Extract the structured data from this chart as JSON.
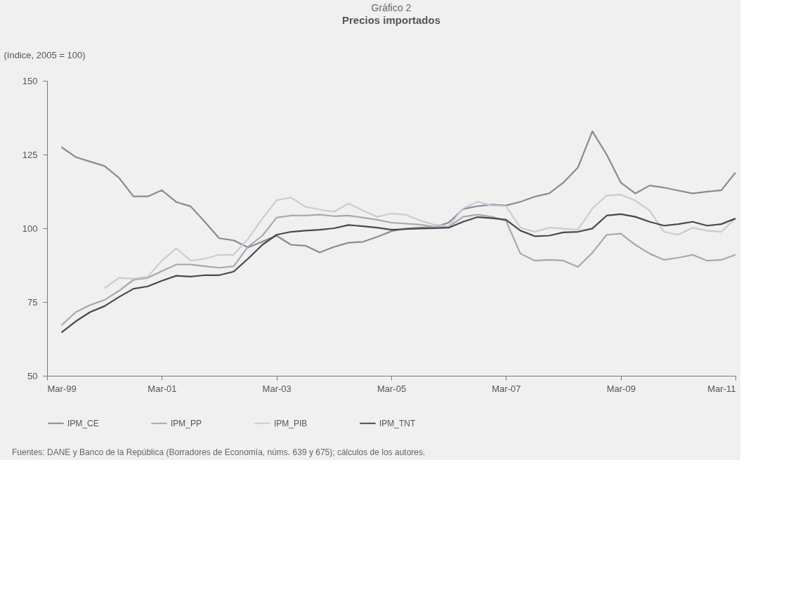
{
  "chart_data": {
    "type": "line",
    "title": "Gráfico 2",
    "subtitle": "Precios importados",
    "ylabel": "(índice, 2005 = 100)",
    "x": [
      "1999-06",
      "1999-09",
      "1999-12",
      "2000-03",
      "2000-06",
      "2000-09",
      "2000-12",
      "2001-03",
      "2001-06",
      "2001-09",
      "2001-12",
      "2002-03",
      "2002-06",
      "2002-09",
      "2002-12",
      "2003-03",
      "2003-06",
      "2003-09",
      "2003-12",
      "2004-03",
      "2004-06",
      "2004-09",
      "2004-12",
      "2005-03",
      "2005-06",
      "2005-09",
      "2005-12",
      "2006-03",
      "2006-06",
      "2006-09",
      "2006-12",
      "2007-03",
      "2007-06",
      "2007-09",
      "2007-12",
      "2008-03",
      "2008-06",
      "2008-09",
      "2008-12",
      "2009-03",
      "2009-06",
      "2009-09",
      "2009-12",
      "2010-03",
      "2010-06",
      "2010-09",
      "2010-12",
      "2011-03"
    ],
    "series": [
      {
        "name": "IPM_CE",
        "color": "#878b99",
        "values": [
          127.5,
          124.1,
          122.6,
          121.1,
          117.1,
          110.8,
          110.8,
          112.9,
          108.9,
          107.4,
          102.1,
          96.6,
          95.9,
          93.5,
          95.5,
          97.5,
          94.4,
          94.1,
          91.8,
          93.7,
          95.1,
          95.4,
          97.1,
          99.0,
          99.9,
          100.2,
          100.4,
          101.9,
          106.5,
          107.5,
          108.0,
          107.7,
          109.0,
          110.7,
          111.8,
          115.5,
          120.6,
          132.9,
          125.0,
          115.5,
          111.8,
          114.5,
          113.8,
          112.8,
          111.8,
          112.4,
          112.9,
          118.9
        ]
      },
      {
        "name": "IPM_PP",
        "color": "#a8a9ad",
        "values": [
          67.1,
          71.6,
          74.0,
          75.7,
          78.8,
          82.5,
          83.2,
          85.5,
          87.7,
          87.7,
          87.1,
          86.6,
          87.1,
          93.8,
          97.5,
          103.6,
          104.3,
          104.3,
          104.6,
          104.1,
          104.3,
          103.6,
          102.9,
          101.9,
          101.6,
          101.2,
          100.5,
          100.5,
          103.9,
          104.6,
          103.9,
          102.6,
          91.4,
          89.0,
          89.3,
          89.0,
          86.9,
          91.7,
          97.8,
          98.2,
          94.4,
          91.4,
          89.3,
          90.0,
          91.0,
          89.0,
          89.3,
          91.0
        ]
      },
      {
        "name": "IPM_PIB",
        "color": "#c9ccd4",
        "values": [
          null,
          null,
          null,
          79.7,
          83.2,
          82.9,
          83.6,
          89.0,
          93.2,
          89.0,
          89.7,
          91.0,
          91.0,
          96.4,
          103.3,
          109.5,
          110.4,
          107.3,
          106.3,
          105.6,
          108.4,
          106.0,
          103.9,
          105.0,
          104.6,
          102.6,
          101.2,
          100.7,
          106.7,
          109.0,
          107.7,
          107.5,
          100.2,
          98.8,
          100.2,
          99.9,
          99.5,
          106.7,
          111.1,
          111.4,
          109.4,
          106.0,
          98.8,
          97.8,
          100.2,
          99.2,
          98.8,
          103.3
        ]
      },
      {
        "name": "IPM_TNT",
        "color": "#48484d",
        "values": [
          64.7,
          68.5,
          71.6,
          73.6,
          76.7,
          79.5,
          80.3,
          82.2,
          83.9,
          83.6,
          84.1,
          84.1,
          85.3,
          89.7,
          94.4,
          97.8,
          98.8,
          99.2,
          99.5,
          100.0,
          101.1,
          100.7,
          100.2,
          99.5,
          99.7,
          99.9,
          100.0,
          100.2,
          102.2,
          103.8,
          103.4,
          102.9,
          99.2,
          97.3,
          97.5,
          98.6,
          98.8,
          99.9,
          104.3,
          104.8,
          103.9,
          102.2,
          100.9,
          101.4,
          102.2,
          100.9,
          101.4,
          103.3
        ]
      }
    ],
    "xlim": [
      "1999-03",
      "2011-03"
    ],
    "xticks": [
      {
        "value": "1999-03",
        "label": "Mar-99"
      },
      {
        "value": "2001-03",
        "label": "Mar-01"
      },
      {
        "value": "2003-03",
        "label": "Mar-03"
      },
      {
        "value": "2005-03",
        "label": "Mar-05"
      },
      {
        "value": "2007-03",
        "label": "Mar-07"
      },
      {
        "value": "2009-03",
        "label": "Mar-09"
      },
      {
        "value": "2011-03",
        "label": "Mar-11"
      }
    ],
    "ylim": [
      50,
      150
    ],
    "yticks": [
      50,
      75,
      100,
      125,
      150
    ],
    "grid": false,
    "legend": "bottom",
    "marker": "none",
    "line_style": "solid",
    "annotations": [
      "Fuentes: DANE y Banco de la República (Borradores de Economía, núms. 639 y 675); cálculos de los autores."
    ]
  }
}
